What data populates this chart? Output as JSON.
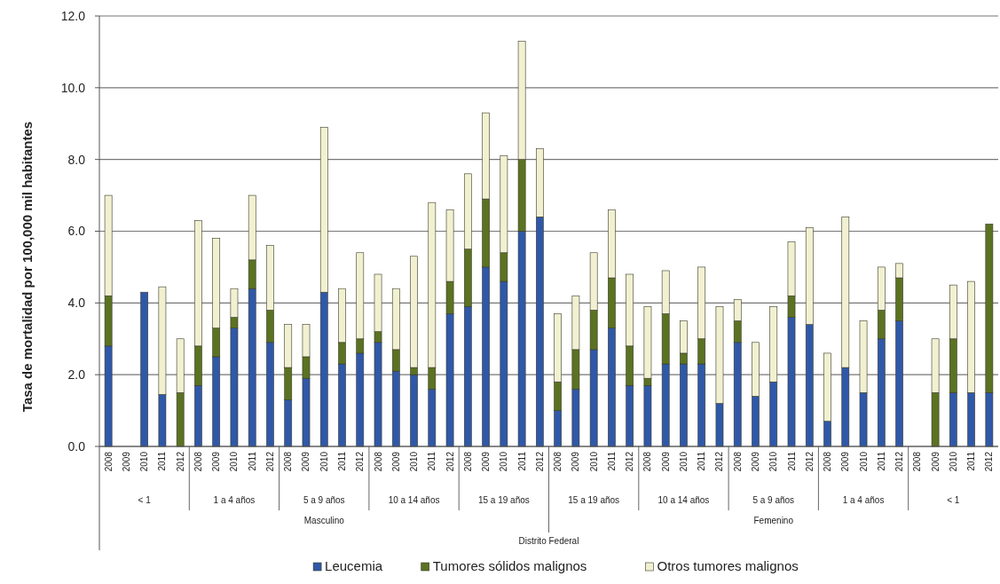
{
  "chart_data": {
    "type": "bar",
    "stacked": true,
    "ylabel": "Tasa de mortalidad por 100,000 mil habitantes",
    "categories": [
      "2008",
      "2009",
      "2010",
      "2011",
      "2012",
      "2008",
      "2009",
      "2010",
      "2011",
      "2012",
      "2008",
      "2009",
      "2010",
      "2011",
      "2012",
      "2008",
      "2009",
      "2010",
      "2011",
      "2012",
      "2008",
      "2009",
      "2010",
      "2011",
      "2012",
      "2008",
      "2009",
      "2010",
      "2011",
      "2012",
      "2008",
      "2009",
      "2010",
      "2011",
      "2012",
      "2008",
      "2009",
      "2010",
      "2011",
      "2012",
      "2008",
      "2009",
      "2010",
      "2011",
      "2012",
      "2008",
      "2009",
      "2010",
      "2011",
      "2012"
    ],
    "series": [
      {
        "name": "Leucemia",
        "color": "#2f58a8",
        "values": [
          2.8,
          0,
          4.3,
          1.45,
          0,
          1.7,
          2.5,
          3.3,
          4.4,
          2.9,
          1.3,
          1.9,
          4.3,
          2.3,
          2.6,
          2.9,
          2.1,
          2.0,
          1.6,
          3.7,
          3.9,
          5.0,
          4.6,
          6.0,
          6.4,
          1.0,
          1.6,
          2.7,
          3.3,
          1.7,
          1.7,
          2.3,
          2.3,
          2.3,
          1.2,
          2.9,
          1.4,
          1.8,
          3.6,
          3.4,
          0.7,
          2.2,
          1.5,
          3.0,
          3.5,
          0,
          0,
          1.5,
          1.5,
          1.5
        ]
      },
      {
        "name": "Tumores sólidos malignos",
        "color": "#5b7222",
        "values": [
          1.4,
          0,
          0,
          0,
          1.5,
          1.1,
          0.8,
          0.3,
          0.8,
          0.9,
          0.9,
          0.6,
          0,
          0.6,
          0.4,
          0.3,
          0.6,
          0.2,
          0.6,
          0.9,
          1.6,
          1.9,
          0.8,
          2.0,
          0,
          0.8,
          1.1,
          1.1,
          1.4,
          1.1,
          0.2,
          1.4,
          0.3,
          0.7,
          0,
          0.6,
          0,
          0,
          0.6,
          0,
          0,
          0,
          0,
          0.8,
          1.2,
          0,
          1.5,
          1.5,
          0,
          4.7
        ]
      },
      {
        "name": "Otros tumores malignos",
        "color": "#f1f1d2",
        "values": [
          2.8,
          0,
          0,
          3.0,
          1.5,
          3.5,
          2.5,
          0.8,
          1.8,
          1.8,
          1.2,
          0.9,
          4.6,
          1.5,
          2.4,
          1.6,
          1.7,
          3.1,
          4.6,
          2.0,
          2.1,
          2.4,
          2.7,
          3.3,
          1.9,
          1.9,
          1.5,
          1.6,
          1.9,
          2.0,
          2.0,
          1.2,
          0.9,
          2.0,
          2.7,
          0.6,
          1.5,
          2.1,
          1.5,
          2.7,
          1.9,
          4.2,
          2.0,
          1.2,
          0.4,
          0,
          1.5,
          1.5,
          3.1,
          0
        ]
      }
    ],
    "ylim": [
      0,
      12
    ],
    "yticks": [
      {
        "value": 0,
        "label": "0.0"
      },
      {
        "value": 2,
        "label": "2.0"
      },
      {
        "value": 4,
        "label": "4.0"
      },
      {
        "value": 6,
        "label": "6.0"
      },
      {
        "value": 8,
        "label": "8.0"
      },
      {
        "value": 10,
        "label": "10.0"
      },
      {
        "value": 12,
        "label": "12.0"
      }
    ],
    "grid": "y",
    "legend": "bottom",
    "annotations": [
      "< 1",
      "1 a 4 años",
      "5 a 9 años",
      "10 a 14 años",
      "15 a 19 años",
      "15 a 19 años",
      "10 a 14 años",
      "5 a 9 años",
      "1 a 4 años",
      "< 1",
      "Masculino",
      "Femenino",
      "Distrito Federal"
    ]
  }
}
